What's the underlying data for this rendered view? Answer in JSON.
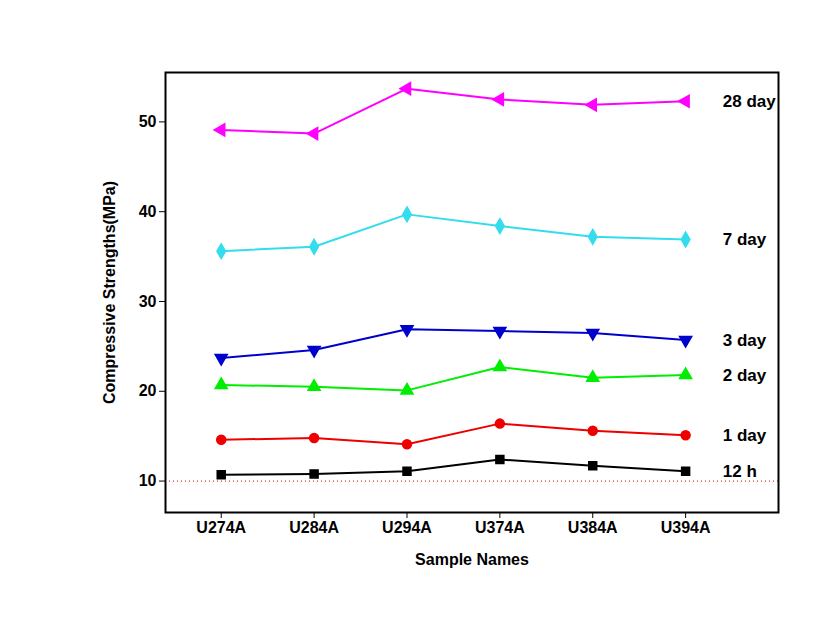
{
  "chart_data": {
    "type": "line",
    "x_label": "Sample Names",
    "y_label": "Compressive Strengths(MPa)",
    "categories": [
      "U274A",
      "U284A",
      "U294A",
      "U374A",
      "U384A",
      "U394A"
    ],
    "ylim": [
      6.5,
      55.5
    ],
    "yticks": [
      10,
      20,
      30,
      40,
      50
    ],
    "grid": false,
    "reference_line": {
      "value": 10,
      "color": "#cc0000",
      "line_style": "dotted"
    },
    "series": [
      {
        "name": "28 day",
        "color": "#ff00ff",
        "marker": "triangle-left",
        "values": [
          49.1,
          48.7,
          53.7,
          52.5,
          51.9,
          52.3
        ]
      },
      {
        "name": "7 day",
        "color": "#33ddee",
        "marker": "diamond",
        "values": [
          35.6,
          36.1,
          39.7,
          38.4,
          37.2,
          36.9
        ]
      },
      {
        "name": "3 day",
        "color": "#0000cc",
        "marker": "triangle-down",
        "values": [
          23.7,
          24.6,
          26.9,
          26.7,
          26.5,
          25.7
        ]
      },
      {
        "name": "2 day",
        "color": "#00ee00",
        "marker": "triangle-up",
        "values": [
          20.7,
          20.5,
          20.1,
          22.7,
          21.5,
          21.8
        ]
      },
      {
        "name": "1 day",
        "color": "#ee0000",
        "marker": "circle",
        "values": [
          14.6,
          14.8,
          14.1,
          16.4,
          15.6,
          15.1
        ]
      },
      {
        "name": "12 h",
        "color": "#000000",
        "marker": "square",
        "values": [
          10.7,
          10.8,
          11.1,
          12.4,
          11.7,
          11.1
        ]
      }
    ]
  }
}
